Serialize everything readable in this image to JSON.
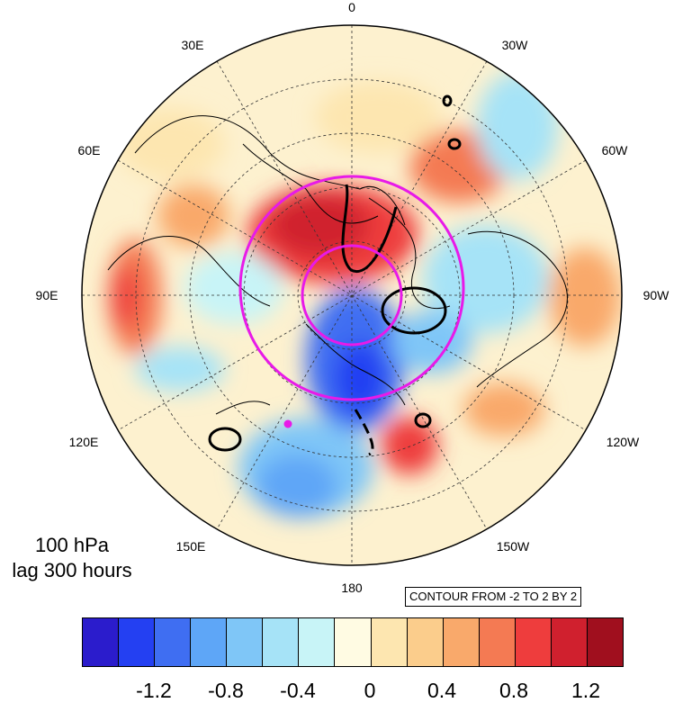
{
  "map": {
    "projection": "north-polar-stereographic",
    "center_lon_top": "0",
    "longitude_labels": [
      "0",
      "30W",
      "60W",
      "90W",
      "120W",
      "150W",
      "180",
      "150E",
      "120E",
      "90E",
      "60E",
      "30E"
    ]
  },
  "caption": {
    "level": "100 hPa",
    "lag": "lag 300 hours"
  },
  "contour_info": "CONTOUR FROM -2 TO 2 BY 2",
  "colorbar": {
    "colors": [
      "#2b1ccc",
      "#2440f2",
      "#3f6ef2",
      "#5ea6f7",
      "#7fc6f7",
      "#a6e3f7",
      "#c8f4f7",
      "#fffbe3",
      "#fde6b0",
      "#fbcd8c",
      "#f9a96b",
      "#f47a53",
      "#ee3d3d",
      "#d0202e",
      "#a00f1e"
    ],
    "labels": [
      "-1.2",
      "-0.8",
      "-0.4",
      "0",
      "0.4",
      "0.8",
      "1.2"
    ]
  }
}
